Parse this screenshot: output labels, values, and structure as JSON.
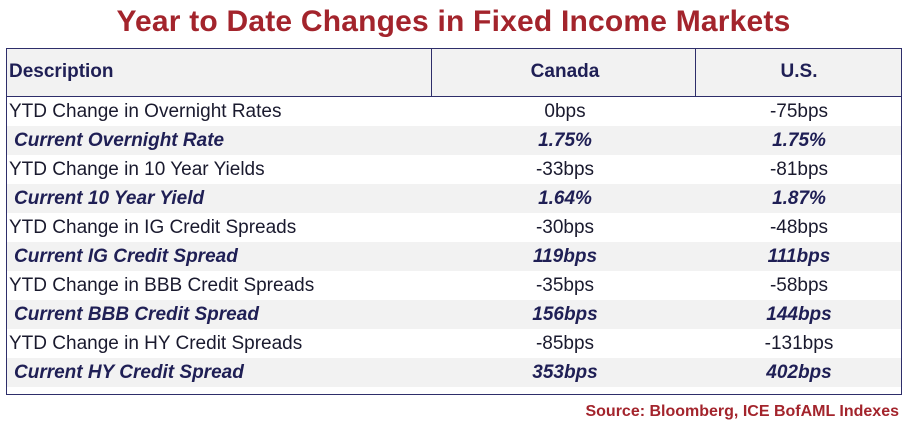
{
  "title": "Year to Date Changes in Fixed Income Markets",
  "colors": {
    "title": "#a3242c",
    "header_text": "#1f1f55",
    "border": "#2e2e6a",
    "row_shade": "#f2f2f2",
    "source": "#a3242c"
  },
  "table": {
    "headers": [
      "Description",
      "Canada",
      "U.S."
    ],
    "rows": [
      {
        "description": "YTD Change in Overnight Rates",
        "canada": "0bps",
        "us": "-75bps"
      },
      {
        "description": "Current Overnight Rate",
        "canada": "1.75%",
        "us": "1.75%"
      },
      {
        "description": "YTD Change in 10 Year Yields",
        "canada": "-33bps",
        "us": "-81bps"
      },
      {
        "description": "Current 10 Year Yield",
        "canada": "1.64%",
        "us": "1.87%"
      },
      {
        "description": "YTD Change in IG Credit Spreads",
        "canada": "-30bps",
        "us": "-48bps"
      },
      {
        "description": "Current IG Credit Spread",
        "canada": "119bps",
        "us": "111bps"
      },
      {
        "description": "YTD Change in BBB Credit Spreads",
        "canada": "-35bps",
        "us": "-58bps"
      },
      {
        "description": "Current BBB Credit Spread",
        "canada": "156bps",
        "us": "144bps"
      },
      {
        "description": "YTD Change in HY Credit Spreads",
        "canada": "-85bps",
        "us": "-131bps"
      },
      {
        "description": "Current HY Credit Spread",
        "canada": "353bps",
        "us": "402bps"
      }
    ]
  },
  "source": "Source: Bloomberg, ICE BofAML Indexes"
}
